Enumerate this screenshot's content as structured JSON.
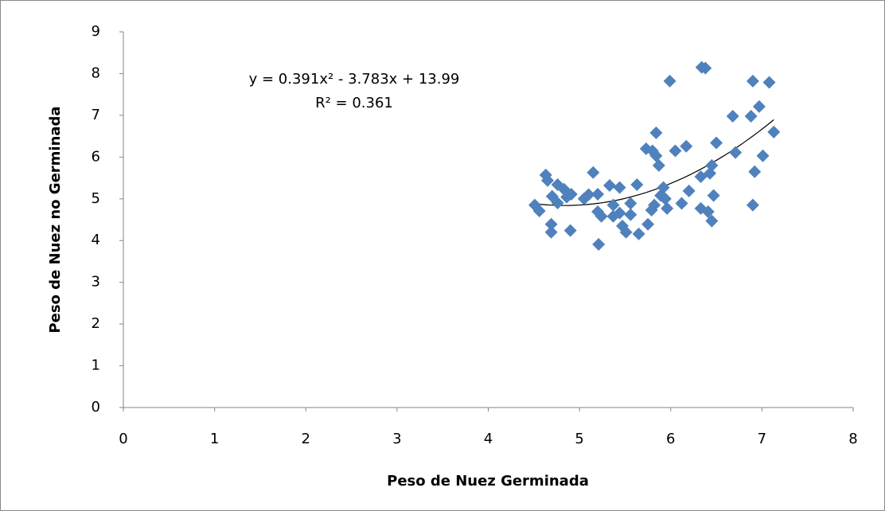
{
  "chart_data": {
    "type": "scatter",
    "x_label": "Peso de Nuez Germinada",
    "y_label": "Peso de Nuez no Germinada",
    "series": [
      {
        "color": "#4f81bd",
        "x": [
          4.51,
          4.56,
          4.63,
          4.65,
          4.7,
          4.76,
          4.69,
          4.69,
          4.76,
          4.83,
          4.86,
          4.91,
          4.9,
          5.15,
          5.1,
          5.05,
          5.2,
          5.2,
          5.24,
          5.21,
          5.33,
          5.44,
          5.37,
          5.37,
          5.44,
          5.47,
          5.51,
          5.56,
          5.56,
          5.63,
          5.65,
          5.75,
          5.73,
          5.8,
          5.84,
          5.84,
          5.87,
          5.79,
          5.82,
          5.89,
          5.92,
          5.96,
          5.94,
          5.99,
          6.05,
          6.17,
          6.12,
          6.2,
          6.33,
          6.34,
          6.38,
          6.33,
          6.41,
          6.43,
          6.45,
          6.47,
          6.45,
          6.5,
          6.68,
          6.71,
          6.88,
          6.9,
          6.92,
          6.9,
          6.97,
          7.01,
          7.08,
          7.13
        ],
        "values": [
          4.85,
          4.71,
          5.57,
          5.44,
          5.06,
          4.9,
          4.39,
          4.2,
          5.34,
          5.23,
          5.04,
          5.11,
          4.24,
          5.63,
          5.1,
          5.0,
          5.11,
          4.69,
          4.58,
          3.91,
          5.32,
          5.27,
          4.85,
          4.58,
          4.66,
          4.35,
          4.2,
          4.89,
          4.62,
          5.34,
          4.16,
          4.39,
          6.2,
          6.15,
          6.58,
          6.03,
          5.8,
          4.73,
          4.85,
          5.08,
          5.27,
          4.77,
          5.0,
          7.82,
          6.15,
          6.26,
          4.89,
          5.19,
          5.53,
          8.15,
          8.13,
          4.77,
          4.69,
          5.61,
          5.8,
          5.08,
          4.47,
          6.34,
          6.98,
          6.11,
          6.98,
          7.82,
          5.65,
          4.85,
          7.21,
          6.03,
          7.79,
          6.6
        ]
      }
    ],
    "trendline": {
      "equation": "y = 0.391x² - 3.783x + 13.99",
      "r_squared": "R² = 0.361",
      "coefficients": [
        0.391,
        -3.783,
        13.99
      ],
      "color": "#000000"
    },
    "xlim": [
      0,
      8
    ],
    "xticks": [
      0,
      1,
      2,
      3,
      4,
      5,
      6,
      7,
      8
    ],
    "ylim": [
      0,
      9
    ],
    "yticks": [
      0,
      1,
      2,
      3,
      4,
      5,
      6,
      7,
      8,
      9
    ]
  }
}
